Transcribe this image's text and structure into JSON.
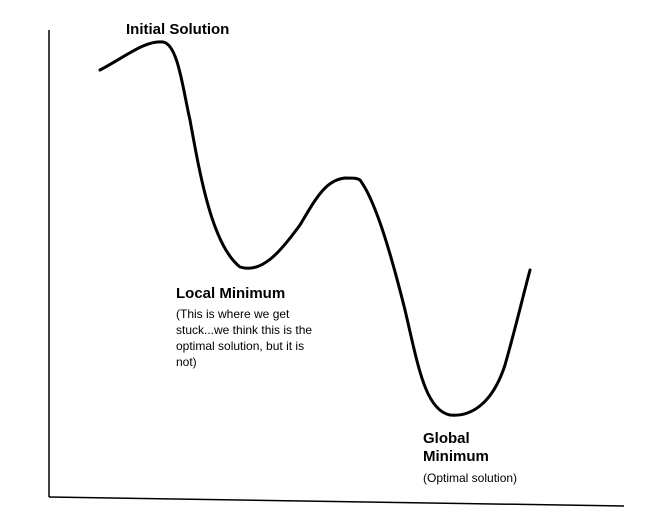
{
  "labels": {
    "initial": "Initial Solution",
    "local_title": "Local Minimum",
    "local_note": "(This is where we get stuck...we think this is the optimal solution, but it is not)",
    "global_title": "Global Minimum",
    "global_note": "(Optimal solution)"
  },
  "colors": {
    "curve": "#000000",
    "axis": "#000000",
    "background": "#ffffff"
  }
}
